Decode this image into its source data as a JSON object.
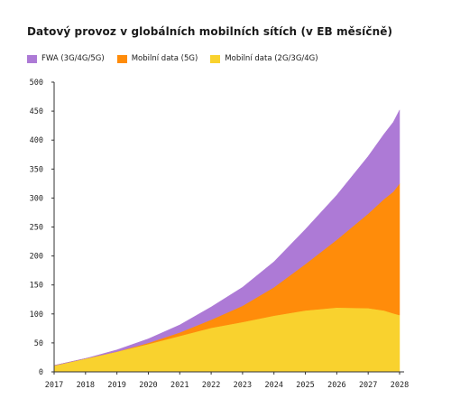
{
  "chart_data": {
    "type": "area",
    "stacked": true,
    "title": "Datový provoz v globálních mobilních sítích (v EB měsíčně)",
    "xlabel": "",
    "ylabel": "",
    "categories": [
      2017,
      2018,
      2019,
      2020,
      2021,
      2022,
      2023,
      2024,
      2025,
      2026,
      2027,
      2028
    ],
    "ylim": [
      0,
      500
    ],
    "yticks": [
      0,
      50,
      100,
      150,
      200,
      250,
      300,
      350,
      400,
      450,
      500
    ],
    "grid": false,
    "legend_position": "top-left",
    "series": [
      {
        "name": "Mobilní data (2G/3G/4G)",
        "color": "#f9d22e",
        "x": [
          2017,
          2018,
          2019,
          2020,
          2021,
          2022,
          2023,
          2024,
          2025,
          2026,
          2027,
          2027.5,
          2027.8,
          2028
        ],
        "values": [
          11,
          23,
          35,
          48,
          62,
          76,
          86,
          97,
          106,
          111,
          110,
          106,
          101,
          98
        ]
      },
      {
        "name": "Mobilní data (5G)",
        "color": "#ff8c0a",
        "x": [
          2017,
          2018,
          2019,
          2020,
          2021,
          2022,
          2023,
          2024,
          2025,
          2026,
          2027,
          2027.5,
          2027.8,
          2028
        ],
        "values": [
          0,
          0,
          0,
          2,
          6,
          14,
          28,
          49,
          80,
          117,
          163,
          192,
          210,
          227
        ]
      },
      {
        "name": "FWA (3G/4G/5G)",
        "color": "#ad7ad6",
        "x": [
          2017,
          2018,
          2019,
          2020,
          2021,
          2022,
          2023,
          2024,
          2025,
          2026,
          2027,
          2027.5,
          2027.8,
          2028
        ],
        "values": [
          0,
          0,
          3,
          7,
          13,
          22,
          32,
          44,
          60,
          77,
          99,
          112,
          120,
          127
        ]
      }
    ],
    "legend": [
      {
        "name": "FWA (3G/4G/5G)",
        "color": "#ad7ad6"
      },
      {
        "name": "Mobilní data (5G)",
        "color": "#ff8c0a"
      },
      {
        "name": "Mobilní data (2G/3G/4G)",
        "color": "#f9d22e"
      }
    ]
  }
}
